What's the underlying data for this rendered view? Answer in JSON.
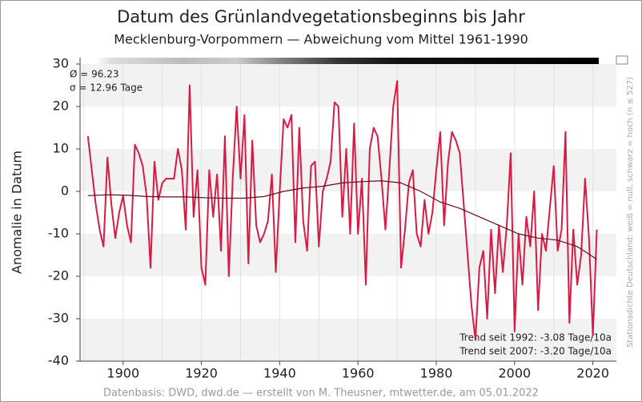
{
  "chart_data": {
    "type": "line",
    "title": "Datum des Grünlandvegetationsbeginns bis Jahr",
    "subtitle": "Mecklenburg-Vorpommern — Abweichung vom Mittel 1961-1990",
    "y_label": "Anomalie in Datum",
    "annotations": [
      "Ø = 96.23",
      "σ = 12.96 Tage",
      "Trend seit 1992: -3.08 Tage/10a",
      "Trend seit 2007: -3.20 Tage/10a"
    ],
    "side_note": "Stationsdichte Deutschland: weiß = null, schwarz = hoch (n ≤ 527)",
    "footer": "Datenbasis: DWD, dwd.de — erstellt von M. Theusner, mtwetter.de, am 05.01.2022",
    "x": [
      1891,
      1892,
      1893,
      1894,
      1895,
      1896,
      1897,
      1898,
      1899,
      1900,
      1901,
      1902,
      1903,
      1904,
      1905,
      1906,
      1907,
      1908,
      1909,
      1910,
      1911,
      1912,
      1913,
      1914,
      1915,
      1916,
      1917,
      1918,
      1919,
      1920,
      1921,
      1922,
      1923,
      1924,
      1925,
      1926,
      1927,
      1928,
      1929,
      1930,
      1931,
      1932,
      1933,
      1934,
      1935,
      1936,
      1937,
      1938,
      1939,
      1940,
      1941,
      1942,
      1943,
      1944,
      1945,
      1946,
      1947,
      1948,
      1949,
      1950,
      1951,
      1952,
      1953,
      1954,
      1955,
      1956,
      1957,
      1958,
      1959,
      1960,
      1961,
      1962,
      1963,
      1964,
      1965,
      1966,
      1967,
      1968,
      1969,
      1970,
      1971,
      1972,
      1973,
      1974,
      1975,
      1976,
      1977,
      1978,
      1979,
      1980,
      1981,
      1982,
      1983,
      1984,
      1985,
      1986,
      1987,
      1988,
      1989,
      1990,
      1991,
      1992,
      1993,
      1994,
      1995,
      1996,
      1997,
      1998,
      1999,
      2000,
      2001,
      2002,
      2003,
      2004,
      2005,
      2006,
      2007,
      2008,
      2009,
      2010,
      2011,
      2012,
      2013,
      2014,
      2015,
      2016,
      2017,
      2018,
      2019,
      2020,
      2021
    ],
    "series": [
      {
        "color": "#d81b45",
        "values": [
          13,
          5,
          -3,
          -9,
          -13,
          8,
          -3,
          -11,
          -5,
          -1,
          -8,
          -12,
          11,
          9,
          6,
          -1,
          -18,
          7,
          -2,
          2,
          3,
          3,
          3,
          10,
          5,
          -9,
          25,
          -6,
          5,
          -18,
          -22,
          5,
          -6,
          4,
          -14,
          13,
          -20,
          3,
          20,
          3,
          18,
          -17,
          12,
          -8,
          -12,
          -10,
          -7,
          4,
          -19,
          0,
          17,
          15,
          18,
          -12,
          15,
          -7,
          -14,
          6,
          7,
          -13,
          0,
          3,
          7,
          21,
          20,
          -6,
          10,
          -10,
          16,
          -10,
          3,
          -22,
          10,
          15,
          13,
          3,
          -9,
          5,
          20,
          26,
          -18,
          -9,
          2,
          5,
          -10,
          -13,
          -2,
          -10,
          -5,
          5,
          14,
          -8,
          7,
          14,
          12,
          9,
          -3,
          -15,
          -27,
          -35,
          -18,
          -14,
          -30,
          -9,
          -24,
          -8,
          -19,
          -8,
          9,
          -33,
          -10,
          -22,
          -6,
          -13,
          0,
          -28,
          -10,
          -14,
          -4,
          6,
          -14,
          -9,
          14,
          -31,
          -9,
          -22,
          -15,
          3,
          -11,
          -34,
          -9
        ]
      },
      {
        "color": "#6b0a14",
        "x": [
          1891,
          1896,
          1901,
          1906,
          1911,
          1916,
          1921,
          1926,
          1931,
          1936,
          1941,
          1946,
          1951,
          1956,
          1961,
          1966,
          1971,
          1976,
          1981,
          1986,
          1991,
          1996,
          2001,
          2006,
          2011,
          2016,
          2021
        ],
        "values": [
          -1,
          -0.8,
          -0.9,
          -1.2,
          -1.3,
          -1.3,
          -1.5,
          -1.6,
          -1.6,
          -1.2,
          0,
          0.8,
          1.2,
          2,
          2.3,
          2.5,
          2,
          0,
          -2.5,
          -4,
          -6,
          -8,
          -10,
          -11,
          -11.5,
          -13,
          -16
        ]
      }
    ],
    "xlim": [
      1889,
      2026
    ],
    "ylim": [
      -40,
      30
    ],
    "xticks": [
      1900,
      1920,
      1940,
      1960,
      1980,
      2000,
      2020
    ],
    "yticks": [
      -40,
      -30,
      -20,
      -10,
      0,
      10,
      20,
      30
    ],
    "grid": true
  }
}
